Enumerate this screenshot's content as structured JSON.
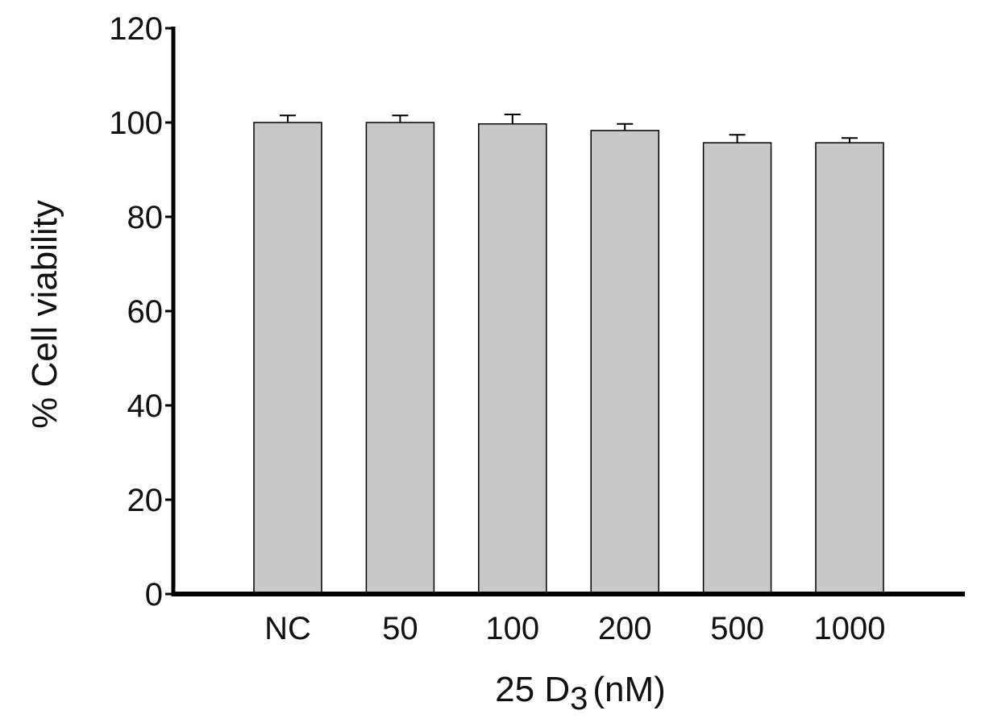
{
  "chart_data": {
    "type": "bar",
    "y_label": "% Cell viability",
    "x_label": {
      "text": "25 D",
      "subscript": "3",
      "suffix": "(nM)"
    },
    "categories": [
      "NC",
      "50",
      "100",
      "200",
      "500",
      "1000"
    ],
    "values": [
      100,
      100,
      99.7,
      98.3,
      95.7,
      95.7
    ],
    "errors": [
      1.5,
      1.5,
      2,
      1.4,
      1.7,
      1
    ],
    "color": "#c8c8c8",
    "ylim": [
      0,
      120
    ],
    "yticks": [
      0,
      20,
      40,
      60,
      80,
      100,
      120
    ],
    "grid": false
  }
}
